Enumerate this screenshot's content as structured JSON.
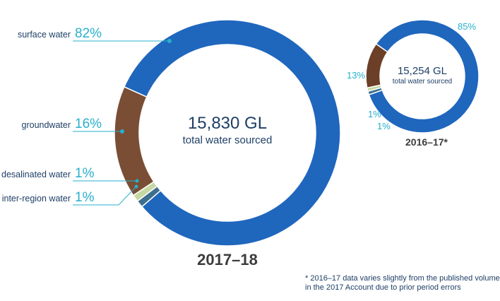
{
  "chart_data": [
    {
      "type": "donut",
      "period": "2017–18",
      "center_value": "15,830 GL",
      "center_label": "total water sourced",
      "categories": [
        "surface water",
        "groundwater",
        "desalinated water",
        "inter-region water"
      ],
      "values": [
        82,
        16,
        1,
        1
      ],
      "value_labels": [
        "82%",
        "16%",
        "1%",
        "1%"
      ],
      "unit": "%"
    },
    {
      "type": "donut",
      "period": "2016–17*",
      "center_value": "15,254 GL",
      "center_label": "total water sourced",
      "categories": [
        "surface water",
        "groundwater",
        "desalinated water",
        "inter-region water"
      ],
      "values": [
        85,
        13,
        1,
        1
      ],
      "value_labels": [
        "85%",
        "13%",
        "1%",
        "1%"
      ],
      "unit": "%"
    }
  ],
  "colors": {
    "surface water": "#1f66bd",
    "groundwater": "#7a4d35",
    "groundwater_small": "#6b3f28",
    "desalinated water": "#c6d9a4",
    "inter-region water": "#3d6f8e",
    "label_accent": "#27b0cc",
    "text_dark": "#1e3f66"
  },
  "footnote": {
    "line1": "* 2016–17 data varies slightly from the published volume",
    "line2": "in the 2017 Account due to prior period errors"
  }
}
